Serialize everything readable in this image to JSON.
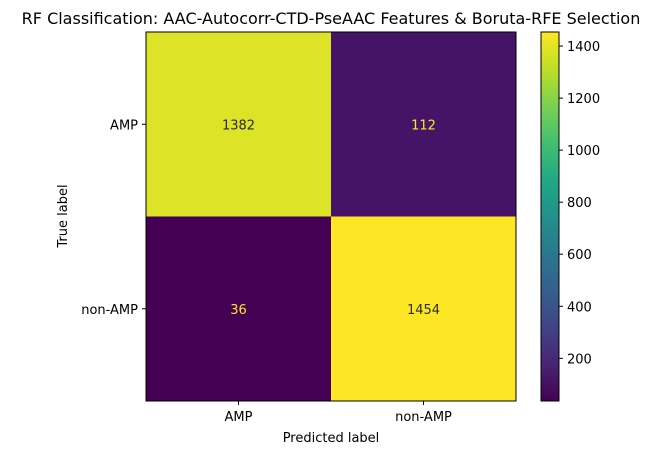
{
  "chart_data": {
    "type": "heatmap",
    "title": "RF Classification: AAC-Autocorr-CTD-PseAAC Features & Boruta-RFE Selection",
    "xlabel": "Predicted label",
    "ylabel": "True label",
    "x_categories": [
      "AMP",
      "non-AMP"
    ],
    "y_categories": [
      "AMP",
      "non-AMP"
    ],
    "values": [
      [
        1382,
        112
      ],
      [
        36,
        1454
      ]
    ],
    "cell_labels": [
      [
        "1382",
        "112"
      ],
      [
        "36",
        "1454"
      ]
    ],
    "colormap": "viridis",
    "colorbar": {
      "range": [
        36,
        1454
      ],
      "ticks": [
        200,
        400,
        600,
        800,
        1000,
        1200,
        1400
      ],
      "tick_labels": [
        "200",
        "400",
        "600",
        "800",
        "1000",
        "1200",
        "1400"
      ]
    },
    "label_colors": {
      "on_dark": "#fde725",
      "on_light": "#2b2b2b"
    },
    "grid": false
  }
}
